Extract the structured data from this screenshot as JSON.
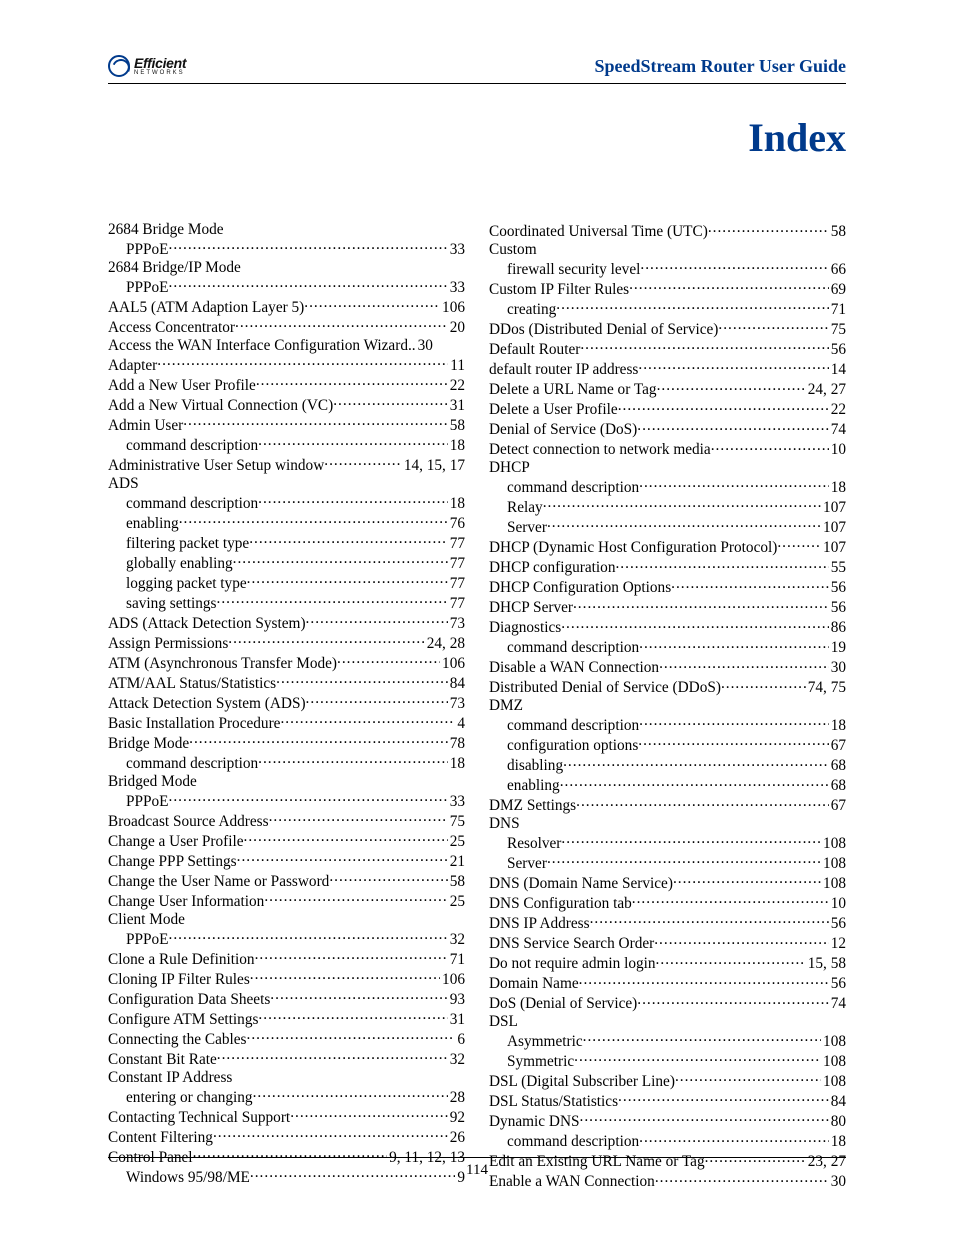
{
  "header": {
    "logo_main": "Efficient",
    "logo_sub": "NETWORKS",
    "title": "SpeedStream Router User Guide"
  },
  "title": "Index",
  "page_number": "114",
  "colors": {
    "accent": "#003a8c"
  },
  "left": [
    {
      "label": "2684 Bridge Mode",
      "heading": true
    },
    {
      "label": "PPPoE",
      "page": "33",
      "sub": true
    },
    {
      "label": "2684 Bridge/IP Mode",
      "heading": true
    },
    {
      "label": "PPPoE",
      "page": "33",
      "sub": true
    },
    {
      "label": "AAL5 (ATM Adaption Layer 5)",
      "page": "106"
    },
    {
      "label": "Access Concentrator",
      "page": "20"
    },
    {
      "label": "Access the WAN Interface Configuration Wizard",
      "page": "30",
      "tight": true
    },
    {
      "label": "Adapter",
      "page": "11"
    },
    {
      "label": "Add a New User Profile",
      "page": "22"
    },
    {
      "label": "Add a New Virtual Connection (VC)",
      "page": "31"
    },
    {
      "label": "Admin User",
      "page": "58"
    },
    {
      "label": "command description",
      "page": "18",
      "sub": true
    },
    {
      "label": "Administrative User Setup window",
      "page": "14, 15, 17"
    },
    {
      "label": "ADS",
      "heading": true
    },
    {
      "label": "command description",
      "page": "18",
      "sub": true
    },
    {
      "label": "enabling",
      "page": "76",
      "sub": true
    },
    {
      "label": "filtering packet type",
      "page": "77",
      "sub": true
    },
    {
      "label": "globally enabling",
      "page": "77",
      "sub": true
    },
    {
      "label": "logging packet type",
      "page": "77",
      "sub": true
    },
    {
      "label": "saving settings",
      "page": "77",
      "sub": true
    },
    {
      "label": "ADS (Attack Detection System)",
      "page": "73"
    },
    {
      "label": "Assign Permissions",
      "page": "24, 28"
    },
    {
      "label": "ATM (Asynchronous Transfer Mode)",
      "page": "106"
    },
    {
      "label": "ATM/AAL Status/Statistics",
      "page": "84"
    },
    {
      "label": "Attack Detection System (ADS)",
      "page": "73"
    },
    {
      "label": "Basic Installation Procedure",
      "page": "4"
    },
    {
      "label": "Bridge Mode",
      "page": "78"
    },
    {
      "label": "command description",
      "page": "18",
      "sub": true
    },
    {
      "label": "Bridged Mode",
      "heading": true
    },
    {
      "label": "PPPoE",
      "page": "33",
      "sub": true
    },
    {
      "label": "Broadcast Source Address",
      "page": "75"
    },
    {
      "label": "Change a User Profile",
      "page": "25"
    },
    {
      "label": "Change PPP Settings",
      "page": "21"
    },
    {
      "label": "Change the User Name or Password",
      "page": "58"
    },
    {
      "label": "Change User Information",
      "page": "25"
    },
    {
      "label": "Client Mode",
      "heading": true
    },
    {
      "label": "PPPoE",
      "page": "32",
      "sub": true
    },
    {
      "label": "Clone a Rule Definition",
      "page": "71"
    },
    {
      "label": "Cloning IP Filter Rules",
      "page": "106"
    },
    {
      "label": "Configuration Data Sheets",
      "page": "93"
    },
    {
      "label": "Configure ATM Settings",
      "page": "31"
    },
    {
      "label": "Connecting the Cables",
      "page": "6"
    },
    {
      "label": "Constant Bit Rate",
      "page": "32"
    },
    {
      "label": "Constant IP Address",
      "heading": true
    },
    {
      "label": "entering or changing",
      "page": "28",
      "sub": true
    },
    {
      "label": "Contacting Technical Support",
      "page": "92"
    },
    {
      "label": "Content Filtering",
      "page": "26"
    },
    {
      "label": "Control Panel",
      "page": "9, 11, 12, 13"
    },
    {
      "label": "Windows 95/98/ME",
      "page": "9",
      "sub": true
    }
  ],
  "right": [
    {
      "label": "Coordinated Universal Time (UTC)",
      "page": "58"
    },
    {
      "label": "Custom",
      "heading": true
    },
    {
      "label": "firewall security level",
      "page": "66",
      "sub": true
    },
    {
      "label": "Custom IP Filter Rules",
      "page": "69"
    },
    {
      "label": "creating",
      "page": "71",
      "sub": true
    },
    {
      "label": "DDos (Distributed Denial of Service)",
      "page": "75"
    },
    {
      "label": "Default Router",
      "page": "56"
    },
    {
      "label": "default router IP address",
      "page": "14"
    },
    {
      "label": "Delete a URL Name or Tag",
      "page": "24, 27"
    },
    {
      "label": "Delete a User Profile",
      "page": "22"
    },
    {
      "label": "Denial of Service (DoS)",
      "page": "74"
    },
    {
      "label": "Detect connection to network media",
      "page": "10"
    },
    {
      "label": "DHCP",
      "heading": true
    },
    {
      "label": "command description",
      "page": "18",
      "sub": true
    },
    {
      "label": "Relay",
      "page": "107",
      "sub": true
    },
    {
      "label": "Server",
      "page": "107",
      "sub": true
    },
    {
      "label": "DHCP (Dynamic Host Configuration Protocol)",
      "page": "107"
    },
    {
      "label": "DHCP configuration",
      "page": "55"
    },
    {
      "label": "DHCP Configuration Options",
      "page": "56"
    },
    {
      "label": "DHCP Server",
      "page": "56"
    },
    {
      "label": "Diagnostics",
      "page": "86"
    },
    {
      "label": "command description",
      "page": "19",
      "sub": true
    },
    {
      "label": "Disable a WAN Connection",
      "page": "30"
    },
    {
      "label": "Distributed Denial of Service (DDoS)",
      "page": "74, 75"
    },
    {
      "label": "DMZ",
      "heading": true
    },
    {
      "label": "command description",
      "page": "18",
      "sub": true
    },
    {
      "label": "configuration options",
      "page": "67",
      "sub": true
    },
    {
      "label": "disabling",
      "page": "68",
      "sub": true
    },
    {
      "label": "enabling",
      "page": "68",
      "sub": true
    },
    {
      "label": "DMZ Settings",
      "page": "67"
    },
    {
      "label": "DNS",
      "heading": true
    },
    {
      "label": "Resolver",
      "page": "108",
      "sub": true
    },
    {
      "label": "Server",
      "page": "108",
      "sub": true
    },
    {
      "label": "DNS (Domain Name Service)",
      "page": "108"
    },
    {
      "label": "DNS Configuration tab",
      "page": "10"
    },
    {
      "label": "DNS IP Address",
      "page": "56"
    },
    {
      "label": "DNS Service Search Order",
      "page": "12"
    },
    {
      "label": "Do not require admin login",
      "page": "15, 58"
    },
    {
      "label": "Domain Name",
      "page": "56"
    },
    {
      "label": "DoS (Denial of Service)",
      "page": "74"
    },
    {
      "label": "DSL",
      "heading": true
    },
    {
      "label": "Asymmetric",
      "page": "108",
      "sub": true
    },
    {
      "label": "Symmetric",
      "page": "108",
      "sub": true
    },
    {
      "label": "DSL (Digital Subscriber Line)",
      "page": "108"
    },
    {
      "label": "DSL Status/Statistics",
      "page": "84"
    },
    {
      "label": "Dynamic DNS",
      "page": "80"
    },
    {
      "label": "command description",
      "page": "18",
      "sub": true
    },
    {
      "label": "Edit an Existing URL Name or Tag",
      "page": "23, 27"
    },
    {
      "label": "Enable a WAN Connection",
      "page": "30"
    }
  ]
}
